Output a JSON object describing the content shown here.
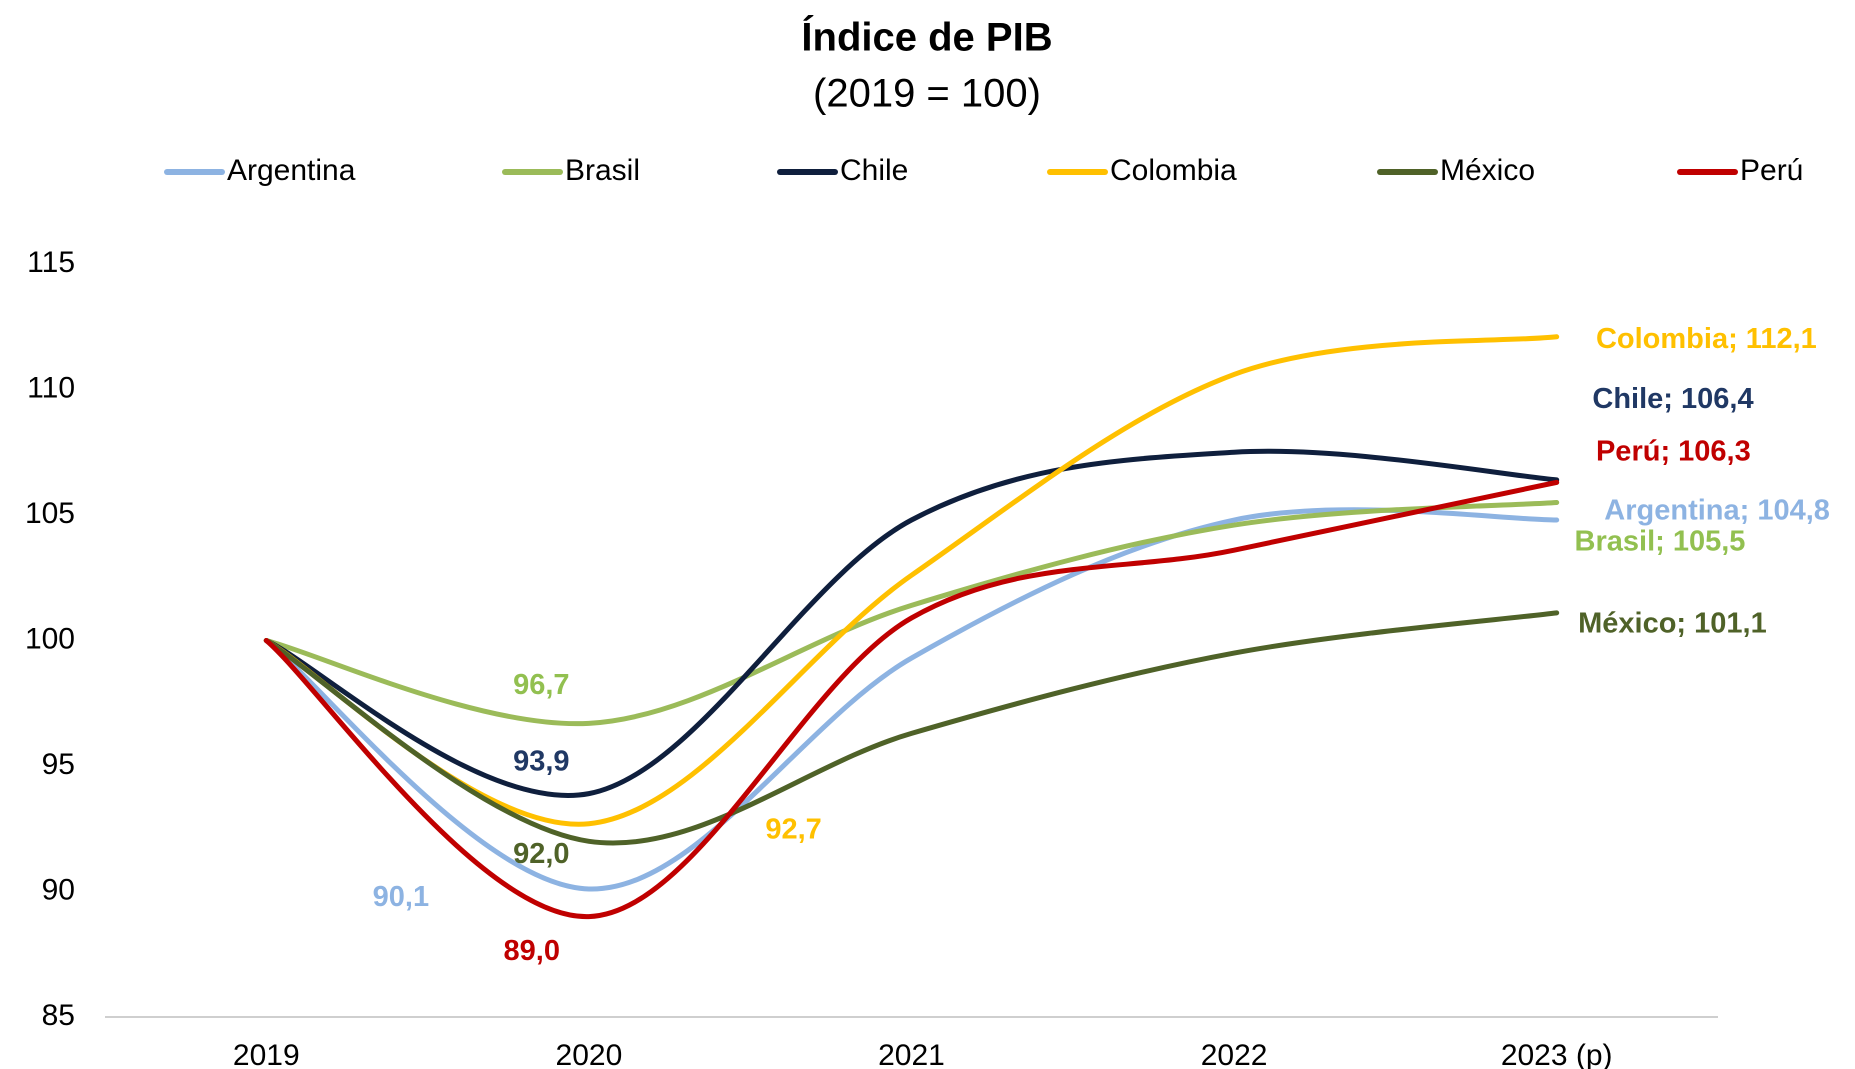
{
  "chart_data": {
    "type": "line",
    "title": "Índice de PIB",
    "subtitle": "(2019 = 100)",
    "categories": [
      "2019",
      "2020",
      "2021",
      "2022",
      "2023 (p)"
    ],
    "ylim": [
      85,
      115
    ],
    "yticks": [
      85,
      90,
      95,
      100,
      105,
      110,
      115
    ],
    "grid": false,
    "legend": "top",
    "smooth": true,
    "series": [
      {
        "name": "Argentina",
        "color": "#8db3e2",
        "values": [
          100,
          90.1,
          99.3,
          104.8,
          104.8
        ],
        "value_labels": [
          null,
          "90,1",
          null,
          null,
          "Argentina; 104,8"
        ]
      },
      {
        "name": "Brasil",
        "color": "#9bbb59",
        "values": [
          100,
          96.7,
          101.4,
          104.6,
          105.5
        ],
        "value_labels": [
          null,
          "96,7",
          null,
          null,
          "Brasil; 105,5"
        ]
      },
      {
        "name": "Chile",
        "color": "#0f1f3d",
        "values": [
          100,
          93.9,
          104.8,
          107.5,
          106.4
        ],
        "value_labels": [
          null,
          "93,9",
          null,
          null,
          "Chile; 106,4"
        ]
      },
      {
        "name": "Colombia",
        "color": "#ffc000",
        "values": [
          100,
          92.7,
          102.6,
          110.6,
          112.1
        ],
        "value_labels": [
          null,
          "92,7",
          null,
          null,
          "Colombia; 112,1"
        ]
      },
      {
        "name": "México",
        "color": "#4f6228",
        "values": [
          100,
          92.0,
          96.3,
          99.5,
          101.1
        ],
        "value_labels": [
          null,
          "92,0",
          null,
          null,
          "México; 101,1"
        ]
      },
      {
        "name": "Perú",
        "color": "#c00000",
        "values": [
          100,
          89.0,
          100.9,
          103.6,
          106.3
        ],
        "value_labels": [
          null,
          "89,0",
          null,
          null,
          "Perú; 106,3"
        ]
      }
    ]
  }
}
